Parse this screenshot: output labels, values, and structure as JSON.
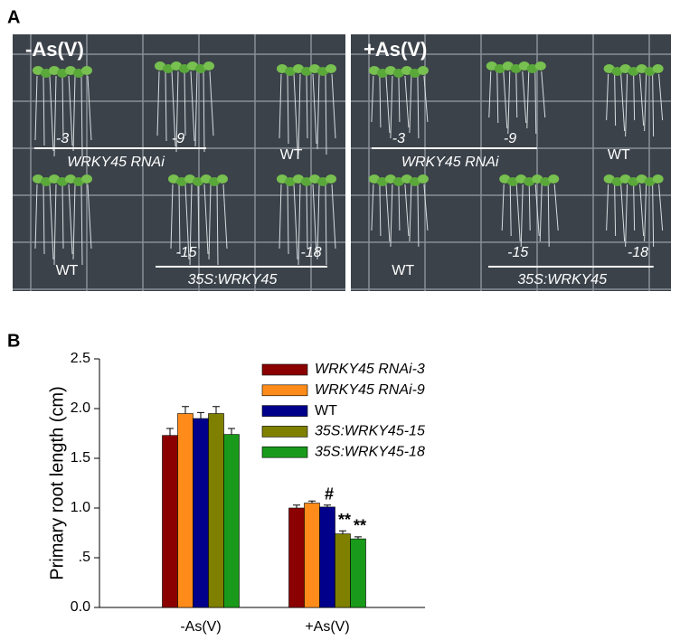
{
  "panel_a": {
    "label": "A",
    "photos": [
      {
        "condition": "-As(V)",
        "rnai_lines": [
          "-3",
          "-9"
        ],
        "rnai_label": "WRKY45 RNAi",
        "wt_top": "WT",
        "wt_bottom": "WT",
        "oe_lines": [
          "-15",
          "-18"
        ],
        "oe_label": "35S:WRKY45"
      },
      {
        "condition": "+As(V)",
        "rnai_lines": [
          "-3",
          "-9"
        ],
        "rnai_label": "WRKY45 RNAi",
        "wt_top": "WT",
        "wt_bottom": "WT",
        "oe_lines": [
          "-15",
          "-18"
        ],
        "oe_label": "35S:WRKY45"
      }
    ]
  },
  "panel_b": {
    "label": "B"
  },
  "chart_data": {
    "type": "bar",
    "y_label": "Primary root length (cm)",
    "categories": [
      "-As(V)",
      "+As(V)"
    ],
    "series": [
      {
        "name": "WRKY45 RNAi-3",
        "italic": true,
        "color": "#8b0000",
        "values": [
          1.73,
          1.0
        ],
        "errors": [
          0.07,
          0.03
        ],
        "significance": [
          null,
          null
        ]
      },
      {
        "name": "WRKY45 RNAi-9",
        "italic": true,
        "color": "#ff8c1a",
        "values": [
          1.95,
          1.05
        ],
        "errors": [
          0.07,
          0.02
        ],
        "significance": [
          null,
          null
        ]
      },
      {
        "name": "WT",
        "italic": false,
        "color": "#00008b",
        "values": [
          1.9,
          1.01
        ],
        "errors": [
          0.06,
          0.02
        ],
        "significance": [
          null,
          "#"
        ]
      },
      {
        "name": "35S:WRKY45-15",
        "italic": true,
        "color": "#808000",
        "values": [
          1.95,
          0.74
        ],
        "errors": [
          0.07,
          0.03
        ],
        "significance": [
          null,
          "**"
        ]
      },
      {
        "name": "35S:WRKY45-18",
        "italic": true,
        "color": "#1a9a1a",
        "values": [
          1.74,
          0.69
        ],
        "errors": [
          0.06,
          0.02
        ],
        "significance": [
          null,
          "**"
        ]
      }
    ],
    "ylim": [
      0,
      2.5
    ],
    "yticks": [
      {
        "value": 0,
        "label": "0.0"
      },
      {
        "value": 0.5,
        "label": ".5"
      },
      {
        "value": 1,
        "label": "1.0"
      },
      {
        "value": 1.5,
        "label": "1.5"
      },
      {
        "value": 2,
        "label": "2.0"
      },
      {
        "value": 2.5,
        "label": "2.5"
      }
    ],
    "grid": false
  }
}
